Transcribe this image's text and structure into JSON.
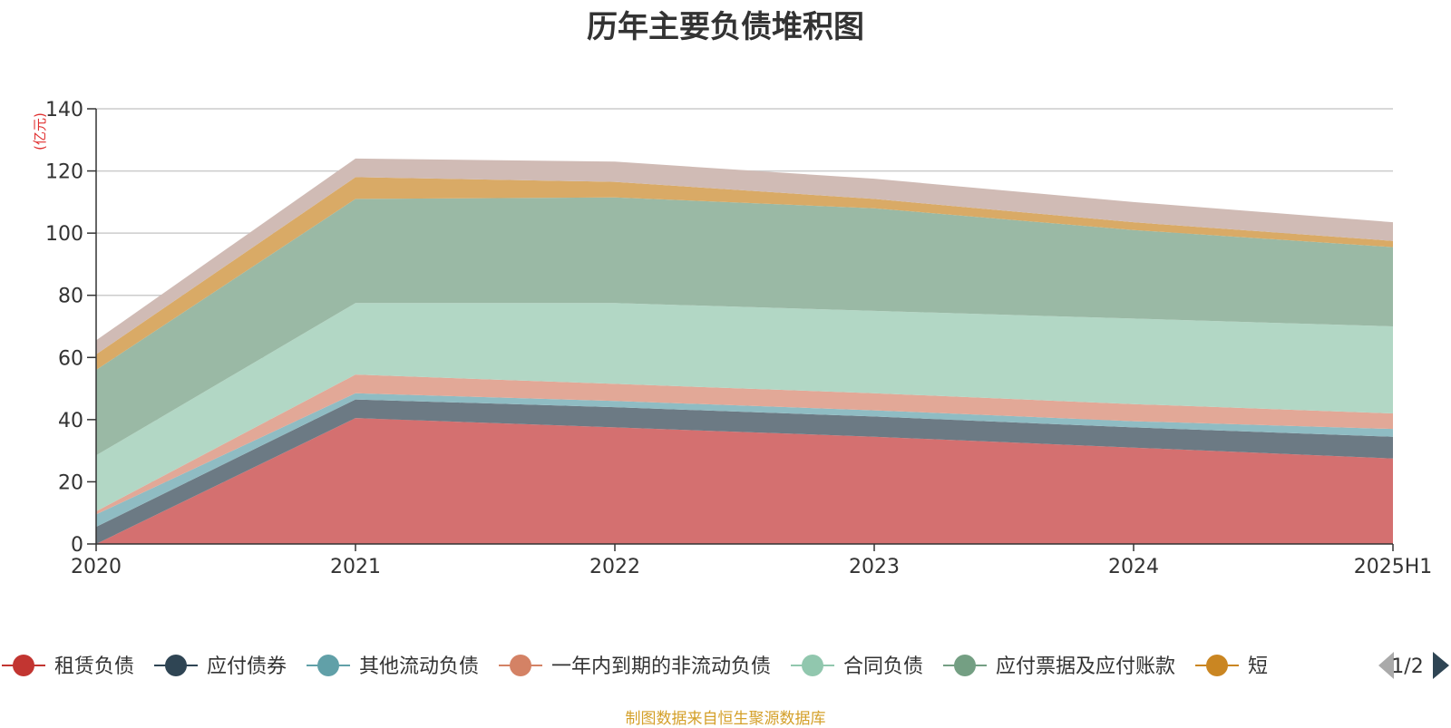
{
  "chart_data": {
    "type": "area",
    "title": "历年主要负债堆积图",
    "ylabel": "(亿元)",
    "xlabel": "",
    "x": [
      "2020",
      "2021",
      "2022",
      "2023",
      "2024",
      "2025H1"
    ],
    "ylim": [
      0,
      140
    ],
    "yticks": [
      0,
      20,
      40,
      60,
      80,
      100,
      120,
      140
    ],
    "grid": true,
    "stacked": true,
    "legend_position": "bottom",
    "legend_page": "1/2",
    "series": [
      {
        "name": "租赁负债",
        "color": "#c23531",
        "fill": "#d47070",
        "values": [
          0,
          40.5,
          37.5,
          34.5,
          31,
          27.5
        ]
      },
      {
        "name": "应付债券",
        "color": "#2f4554",
        "fill": "#6c7a84",
        "values": [
          5.5,
          6,
          6.5,
          6.5,
          6.5,
          7
        ]
      },
      {
        "name": "其他流动负债",
        "color": "#61a0a8",
        "fill": "#8fbcc3",
        "values": [
          4,
          2,
          2,
          2,
          2,
          2.5
        ]
      },
      {
        "name": "一年内到期的非流动负债",
        "color": "#d48265",
        "fill": "#e2a897",
        "values": [
          1,
          6,
          5.5,
          5.5,
          5.5,
          5
        ]
      },
      {
        "name": "合同负债",
        "color": "#91c7ae",
        "fill": "#b2d7c5",
        "values": [
          18,
          23,
          26,
          26.5,
          27.5,
          28
        ]
      },
      {
        "name": "应付票据及应付账款",
        "color": "#749f83",
        "fill": "#9ab9a5",
        "values": [
          27.5,
          33.5,
          34,
          33,
          28.5,
          25.5
        ]
      },
      {
        "name": "短",
        "color": "#ca8622",
        "fill": "#d9aa66",
        "values": [
          5,
          7,
          5,
          3,
          2.5,
          2
        ]
      },
      {
        "name": "",
        "color": "#bda29a",
        "fill": "#d0bbb5",
        "values": [
          4.5,
          6,
          6.5,
          6.5,
          6.5,
          6
        ]
      }
    ]
  },
  "source_note": "制图数据来自恒生聚源数据库"
}
